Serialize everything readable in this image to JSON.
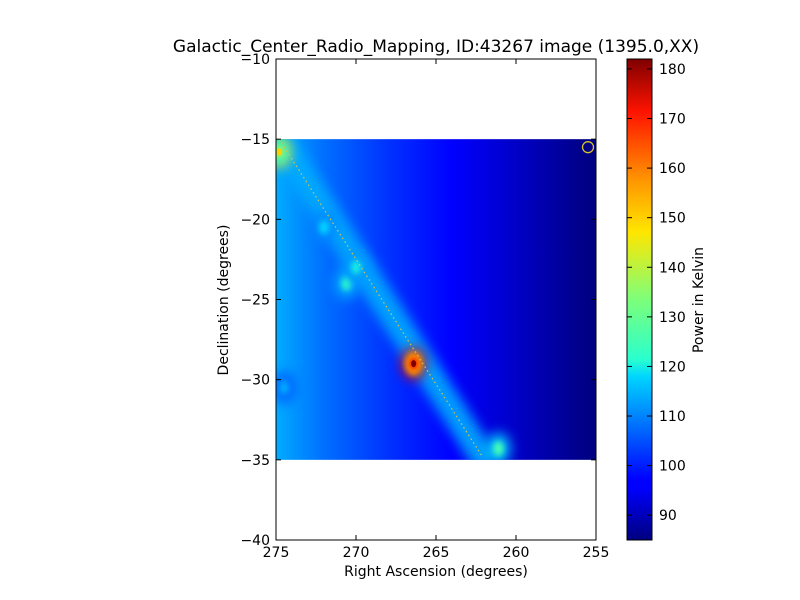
{
  "chart_data": {
    "type": "heatmap",
    "title": "Galactic_Center_Radio_Mapping, ID:43267 image (1395.0,XX)",
    "xlabel": "Right Ascension (degrees)",
    "ylabel": "Declination (degrees)",
    "xlim": [
      275,
      255
    ],
    "ylim": [
      -40,
      -10
    ],
    "x_ticks": [
      275,
      270,
      265,
      260,
      255
    ],
    "y_ticks": [
      -10,
      -15,
      -20,
      -25,
      -30,
      -35,
      -40
    ],
    "data_extent": {
      "ra": [
        275,
        255
      ],
      "dec": [
        -35,
        -15
      ]
    },
    "colorbar": {
      "label": "Power in Kelvin",
      "range": [
        85,
        182
      ],
      "ticks": [
        90,
        100,
        110,
        120,
        130,
        140,
        150,
        160,
        170,
        180
      ],
      "colormap": "jet"
    },
    "background_gradient": [
      {
        "ra": 275,
        "power": 114
      },
      {
        "ra": 272,
        "power": 108
      },
      {
        "ra": 268,
        "power": 102
      },
      {
        "ra": 264,
        "power": 97
      },
      {
        "ra": 260,
        "power": 91
      },
      {
        "ra": 256,
        "power": 86
      },
      {
        "ra": 255,
        "power": 85
      }
    ],
    "sources": [
      {
        "ra": 266.4,
        "dec": -29.0,
        "peak_power": 182
      },
      {
        "ra": 274.8,
        "dec": -15.8,
        "peak_power": 150
      },
      {
        "ra": 270.6,
        "dec": -24.0,
        "peak_power": 122
      },
      {
        "ra": 270.0,
        "dec": -23.0,
        "peak_power": 120
      },
      {
        "ra": 272.0,
        "dec": -20.5,
        "peak_power": 118
      },
      {
        "ra": 261.1,
        "dec": -34.3,
        "peak_power": 126
      },
      {
        "ra": 274.5,
        "dec": -30.5,
        "peak_power": 114
      }
    ],
    "galactic_plane_track": [
      {
        "ra": 274.8,
        "dec": -15.0
      },
      {
        "ra": 262.1,
        "dec": -34.8
      }
    ],
    "marker": {
      "ra": 255.5,
      "dec": -15.5,
      "shape": "circle",
      "color": "#d4c22a"
    }
  }
}
